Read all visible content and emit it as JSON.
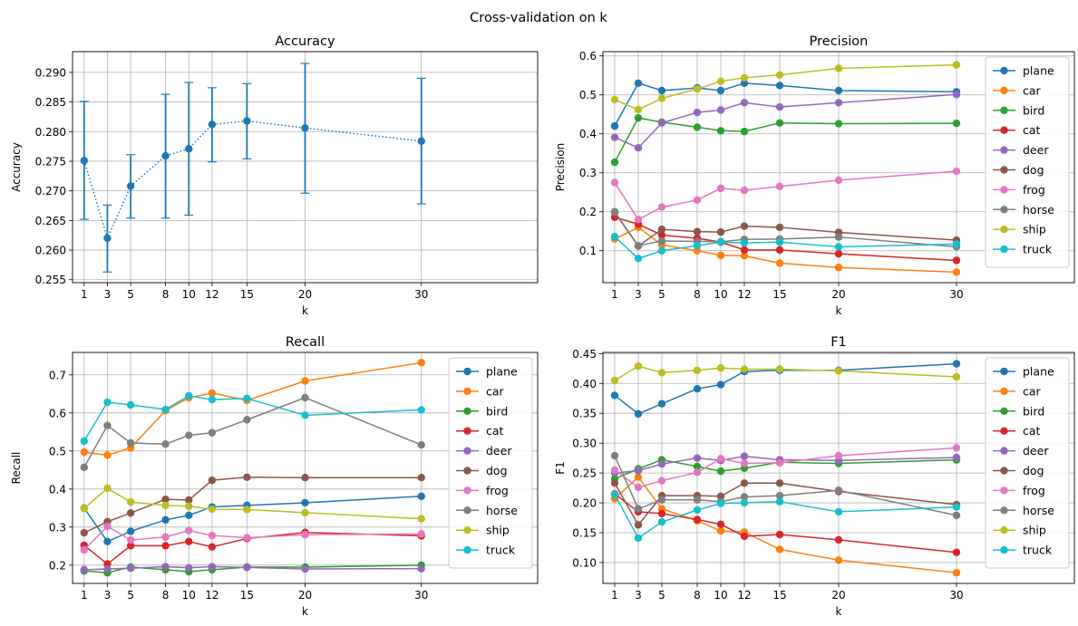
{
  "figure": {
    "suptitle": "Cross-validation on k"
  },
  "legend_labels": [
    "plane",
    "car",
    "bird",
    "cat",
    "deer",
    "dog",
    "frog",
    "horse",
    "ship",
    "truck"
  ],
  "series_colors": [
    "#1f77b4",
    "#ff7f0e",
    "#2ca02c",
    "#d62728",
    "#9467bd",
    "#8c564b",
    "#e377c2",
    "#7f7f7f",
    "#bcbd22",
    "#17becf"
  ],
  "chart_data": [
    {
      "type": "line",
      "variant": "errorbar",
      "line_style": "dotted",
      "title": "Accuracy",
      "xlabel": "k",
      "ylabel": "Accuracy",
      "x": [
        1,
        3,
        5,
        8,
        10,
        12,
        15,
        20,
        30
      ],
      "x_ticks": [
        1,
        3,
        5,
        8,
        10,
        12,
        15,
        20,
        30
      ],
      "xlim": [
        0,
        40
      ],
      "y_ticks": [
        "0.255",
        "0.260",
        "0.265",
        "0.270",
        "0.275",
        "0.280",
        "0.285",
        "0.290"
      ],
      "ylim": [
        0.2545,
        0.2935
      ],
      "grid": true,
      "legend": "none",
      "series": [
        {
          "color": "#1f77b4",
          "values": [
            0.2751,
            0.262,
            0.2708,
            0.2759,
            0.2771,
            0.2812,
            0.2818,
            0.2806,
            0.2784
          ],
          "err_low": [
            0.2652,
            0.2563,
            0.2654,
            0.2654,
            0.2659,
            0.2749,
            0.2754,
            0.2696,
            0.2678
          ],
          "err_high": [
            0.2851,
            0.2676,
            0.2761,
            0.2863,
            0.2883,
            0.2874,
            0.2881,
            0.2915,
            0.289
          ]
        }
      ]
    },
    {
      "type": "line",
      "title": "Precision",
      "xlabel": "k",
      "ylabel": "Precision",
      "x": [
        1,
        3,
        5,
        8,
        10,
        12,
        15,
        20,
        30
      ],
      "x_ticks": [
        1,
        3,
        5,
        8,
        10,
        12,
        15,
        20,
        30
      ],
      "xlim": [
        0,
        40
      ],
      "y_ticks": [
        "0.1",
        "0.2",
        "0.3",
        "0.4",
        "0.5",
        "0.6"
      ],
      "ylim": [
        0.018,
        0.611
      ],
      "grid": true,
      "legend": "right",
      "series": [
        {
          "name": "plane",
          "color": "#1f77b4",
          "values": [
            0.42,
            0.53,
            0.511,
            0.518,
            0.511,
            0.53,
            0.524,
            0.511,
            0.508
          ]
        },
        {
          "name": "car",
          "color": "#ff7f0e",
          "values": [
            0.13,
            0.16,
            0.115,
            0.1,
            0.088,
            0.087,
            0.068,
            0.057,
            0.045
          ]
        },
        {
          "name": "bird",
          "color": "#2ca02c",
          "values": [
            0.327,
            0.441,
            0.43,
            0.417,
            0.408,
            0.406,
            0.428,
            0.426,
            0.427
          ]
        },
        {
          "name": "cat",
          "color": "#d62728",
          "values": [
            0.186,
            0.168,
            0.14,
            0.132,
            0.122,
            0.102,
            0.102,
            0.092,
            0.075
          ]
        },
        {
          "name": "deer",
          "color": "#9467bd",
          "values": [
            0.391,
            0.364,
            0.428,
            0.455,
            0.461,
            0.48,
            0.469,
            0.48,
            0.501
          ]
        },
        {
          "name": "dog",
          "color": "#8c564b",
          "values": [
            0.198,
            0.112,
            0.155,
            0.149,
            0.148,
            0.163,
            0.16,
            0.147,
            0.127
          ]
        },
        {
          "name": "frog",
          "color": "#e377c2",
          "values": [
            0.275,
            0.18,
            0.212,
            0.23,
            0.26,
            0.255,
            0.265,
            0.281,
            0.304
          ]
        },
        {
          "name": "horse",
          "color": "#7f7f7f",
          "values": [
            0.2,
            0.113,
            0.125,
            0.124,
            0.123,
            0.129,
            0.13,
            0.135,
            0.11
          ]
        },
        {
          "name": "ship",
          "color": "#bcbd22",
          "values": [
            0.488,
            0.462,
            0.491,
            0.515,
            0.535,
            0.544,
            0.551,
            0.568,
            0.577
          ]
        },
        {
          "name": "truck",
          "color": "#17becf",
          "values": [
            0.136,
            0.08,
            0.1,
            0.113,
            0.122,
            0.12,
            0.122,
            0.11,
            0.117
          ]
        }
      ]
    },
    {
      "type": "line",
      "title": "Recall",
      "xlabel": "k",
      "ylabel": "Recall",
      "x": [
        1,
        3,
        5,
        8,
        10,
        12,
        15,
        20,
        30
      ],
      "x_ticks": [
        1,
        3,
        5,
        8,
        10,
        12,
        15,
        20,
        30
      ],
      "xlim": [
        0,
        40
      ],
      "y_ticks": [
        "0.2",
        "0.3",
        "0.4",
        "0.5",
        "0.6",
        "0.7"
      ],
      "ylim": [
        0.152,
        0.759
      ],
      "grid": true,
      "legend": "right",
      "series": [
        {
          "name": "plane",
          "color": "#1f77b4",
          "values": [
            0.35,
            0.262,
            0.289,
            0.319,
            0.331,
            0.353,
            0.357,
            0.364,
            0.381
          ]
        },
        {
          "name": "car",
          "color": "#ff7f0e",
          "values": [
            0.497,
            0.489,
            0.508,
            0.606,
            0.64,
            0.652,
            0.633,
            0.684,
            0.732
          ]
        },
        {
          "name": "bird",
          "color": "#2ca02c",
          "values": [
            0.185,
            0.18,
            0.195,
            0.188,
            0.183,
            0.188,
            0.195,
            0.195,
            0.2
          ]
        },
        {
          "name": "cat",
          "color": "#d62728",
          "values": [
            0.252,
            0.203,
            0.251,
            0.251,
            0.262,
            0.248,
            0.27,
            0.286,
            0.277
          ]
        },
        {
          "name": "deer",
          "color": "#9467bd",
          "values": [
            0.188,
            0.19,
            0.192,
            0.196,
            0.193,
            0.196,
            0.194,
            0.19,
            0.191
          ]
        },
        {
          "name": "dog",
          "color": "#8c564b",
          "values": [
            0.285,
            0.314,
            0.337,
            0.373,
            0.371,
            0.423,
            0.431,
            0.43,
            0.43
          ]
        },
        {
          "name": "frog",
          "color": "#e377c2",
          "values": [
            0.24,
            0.302,
            0.266,
            0.274,
            0.291,
            0.278,
            0.272,
            0.28,
            0.282
          ]
        },
        {
          "name": "horse",
          "color": "#7f7f7f",
          "values": [
            0.457,
            0.567,
            0.521,
            0.518,
            0.541,
            0.548,
            0.582,
            0.64,
            0.516
          ]
        },
        {
          "name": "ship",
          "color": "#bcbd22",
          "values": [
            0.349,
            0.402,
            0.366,
            0.357,
            0.355,
            0.347,
            0.346,
            0.338,
            0.322
          ]
        },
        {
          "name": "truck",
          "color": "#17becf",
          "values": [
            0.526,
            0.628,
            0.621,
            0.609,
            0.645,
            0.635,
            0.638,
            0.594,
            0.608
          ]
        }
      ]
    },
    {
      "type": "line",
      "title": "F1",
      "xlabel": "k",
      "ylabel": "F1",
      "x": [
        1,
        3,
        5,
        8,
        10,
        12,
        15,
        20,
        30
      ],
      "x_ticks": [
        1,
        3,
        5,
        8,
        10,
        12,
        15,
        20,
        30
      ],
      "xlim": [
        0,
        40
      ],
      "y_ticks": [
        "0.10",
        "0.15",
        "0.20",
        "0.25",
        "0.30",
        "0.35",
        "0.40",
        "0.45"
      ],
      "ylim": [
        0.065,
        0.452
      ],
      "grid": true,
      "legend": "right",
      "series": [
        {
          "name": "plane",
          "color": "#1f77b4",
          "values": [
            0.38,
            0.349,
            0.366,
            0.391,
            0.398,
            0.42,
            0.422,
            0.422,
            0.433
          ]
        },
        {
          "name": "car",
          "color": "#ff7f0e",
          "values": [
            0.207,
            0.243,
            0.19,
            0.17,
            0.153,
            0.151,
            0.122,
            0.104,
            0.083
          ]
        },
        {
          "name": "bird",
          "color": "#2ca02c",
          "values": [
            0.24,
            0.257,
            0.272,
            0.261,
            0.253,
            0.258,
            0.268,
            0.266,
            0.272
          ]
        },
        {
          "name": "cat",
          "color": "#d62728",
          "values": [
            0.215,
            0.185,
            0.182,
            0.172,
            0.164,
            0.144,
            0.147,
            0.138,
            0.117
          ]
        },
        {
          "name": "deer",
          "color": "#9467bd",
          "values": [
            0.25,
            0.254,
            0.265,
            0.275,
            0.271,
            0.278,
            0.272,
            0.271,
            0.276
          ]
        },
        {
          "name": "dog",
          "color": "#8c564b",
          "values": [
            0.233,
            0.163,
            0.212,
            0.212,
            0.211,
            0.233,
            0.233,
            0.219,
            0.197
          ]
        },
        {
          "name": "frog",
          "color": "#e377c2",
          "values": [
            0.255,
            0.226,
            0.237,
            0.251,
            0.274,
            0.266,
            0.267,
            0.279,
            0.292
          ]
        },
        {
          "name": "horse",
          "color": "#7f7f7f",
          "values": [
            0.279,
            0.19,
            0.205,
            0.205,
            0.202,
            0.21,
            0.212,
            0.221,
            0.179
          ]
        },
        {
          "name": "ship",
          "color": "#bcbd22",
          "values": [
            0.405,
            0.429,
            0.418,
            0.422,
            0.426,
            0.424,
            0.424,
            0.421,
            0.411
          ]
        },
        {
          "name": "truck",
          "color": "#17becf",
          "values": [
            0.214,
            0.141,
            0.168,
            0.188,
            0.199,
            0.2,
            0.202,
            0.185,
            0.193
          ]
        }
      ]
    }
  ]
}
